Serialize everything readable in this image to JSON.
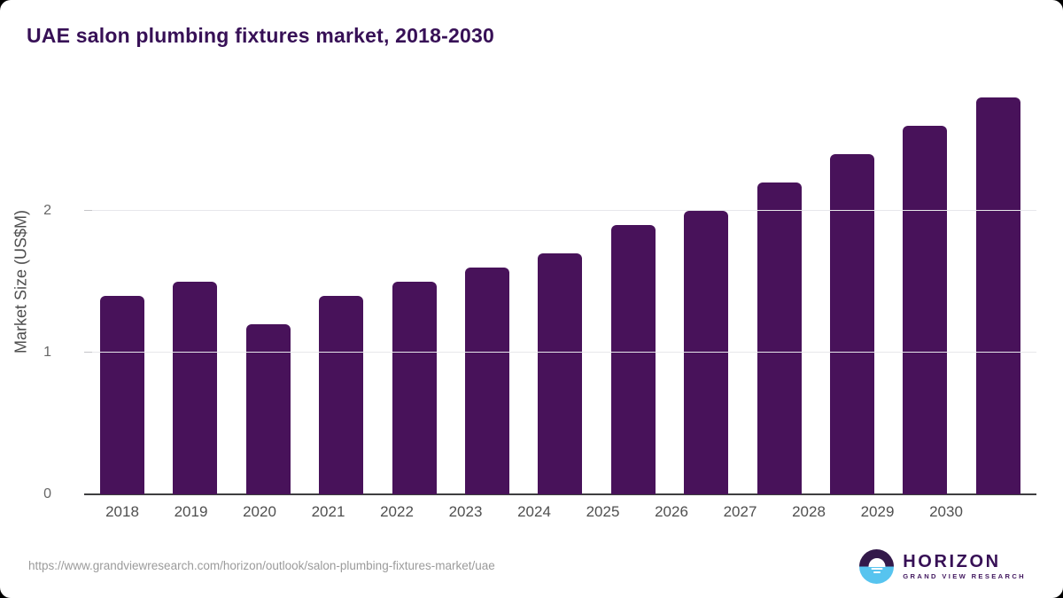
{
  "page": {
    "outer_background": "#000000",
    "card_background": "#ffffff"
  },
  "header": {
    "title": "UAE salon plumbing fixtures market, 2018-2030",
    "title_color": "#371056"
  },
  "chart_data": {
    "type": "bar",
    "title": "UAE salon plumbing fixtures market, 2018-2030",
    "xlabel": "",
    "ylabel": "Market Size (US$M)",
    "categories": [
      "2018",
      "2019",
      "2020",
      "2021",
      "2022",
      "2023",
      "2024",
      "2025",
      "2026",
      "2027",
      "2028",
      "2029",
      "2030"
    ],
    "values": [
      1.4,
      1.5,
      1.2,
      1.4,
      1.5,
      1.6,
      1.7,
      1.9,
      2.0,
      2.2,
      2.4,
      2.6,
      2.8
    ],
    "ylim": [
      0,
      2.9
    ],
    "yticks": [
      0,
      1,
      2
    ],
    "bar_color": "#48125a",
    "gridline_color": "#e7e7eb",
    "axis_color": "#3e3e40",
    "grid": "horizontal",
    "legend": "none"
  },
  "footer": {
    "source_url": "https://www.grandviewresearch.com/horizon/outlook/salon-plumbing-fixtures-market/uae",
    "logo": {
      "name": "HORIZON",
      "subtitle": "GRAND VIEW RESEARCH",
      "mark_top_color": "#33194a",
      "mark_bottom_color": "#57c4ef"
    }
  }
}
